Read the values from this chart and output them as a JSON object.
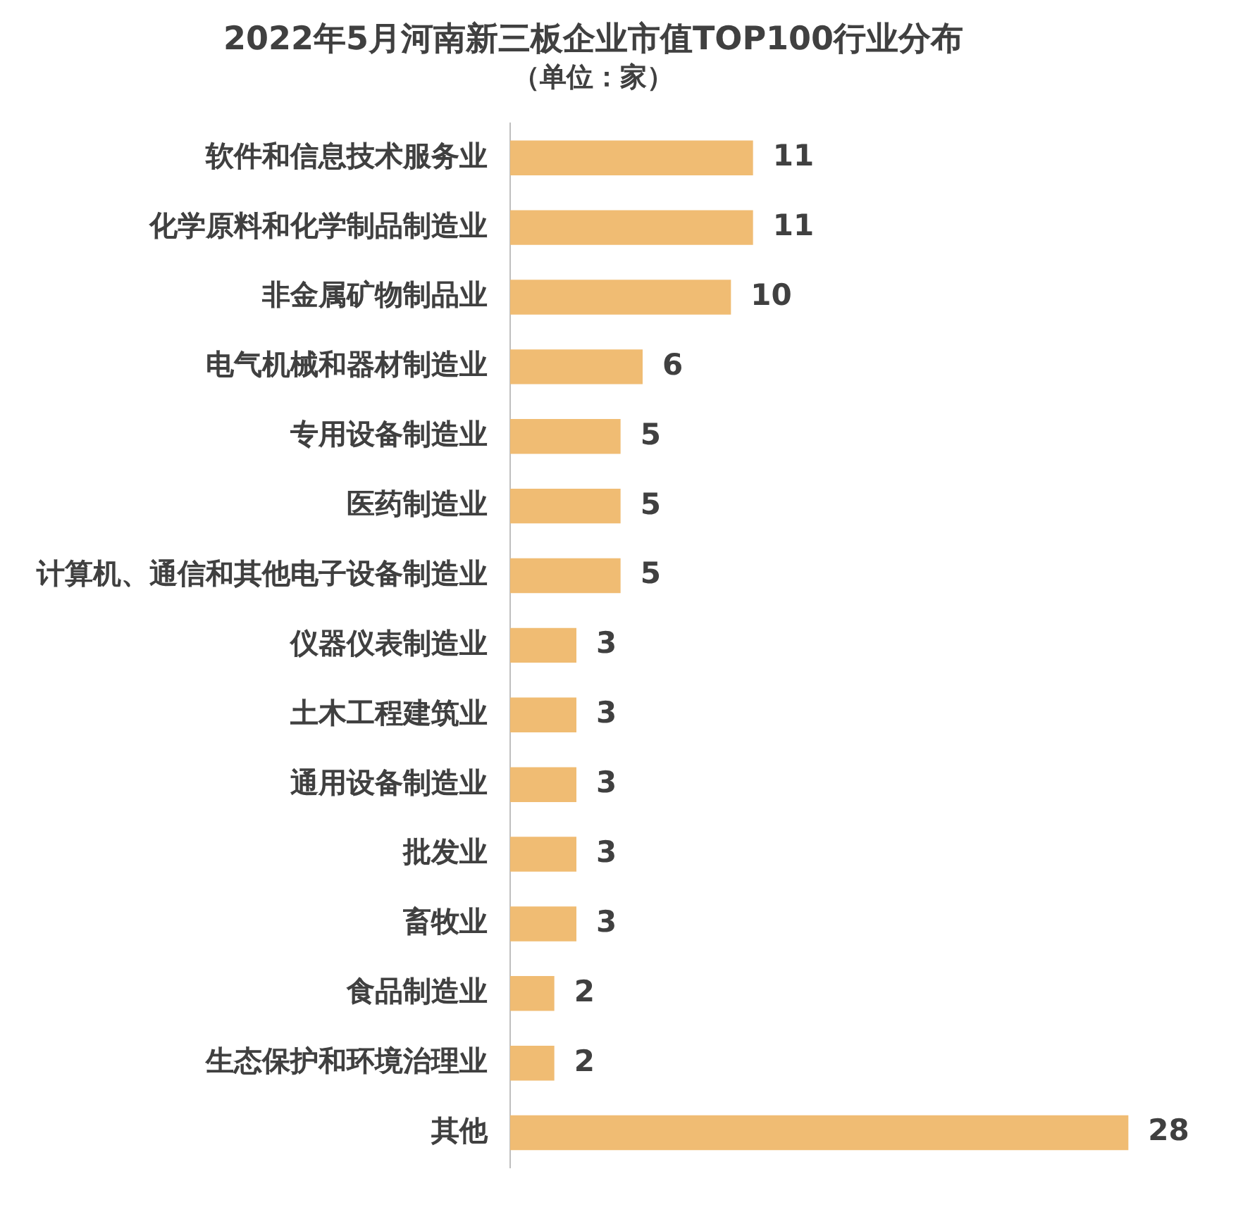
{
  "chart_data": {
    "type": "bar",
    "orientation": "horizontal",
    "title": "2022年5月河南新三板企业市值TOP100行业分布",
    "subtitle": "（单位：家）",
    "categories": [
      "软件和信息技术服务业",
      "化学原料和化学制品制造业",
      "非金属矿物制品业",
      "电气机械和器材制造业",
      "专用设备制造业",
      "医药制造业",
      "计算机、通信和其他电子设备制造业",
      "仪器仪表制造业",
      "土木工程建筑业",
      "通用设备制造业",
      "批发业",
      "畜牧业",
      "食品制造业",
      "生态保护和环境治理业",
      "其他"
    ],
    "values": [
      11,
      11,
      10,
      6,
      5,
      5,
      5,
      3,
      3,
      3,
      3,
      3,
      2,
      2,
      28
    ],
    "color": "#f0bc73",
    "data_labels": true,
    "tick_labels": "y"
  }
}
